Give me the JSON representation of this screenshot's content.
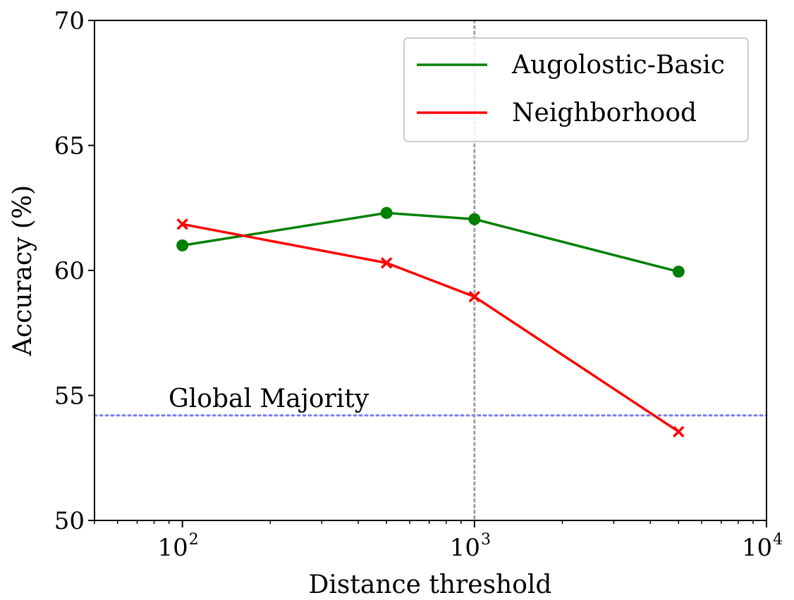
{
  "chart_data": {
    "type": "line",
    "xscale": "log",
    "xlim": [
      50,
      10000
    ],
    "ylim": [
      50,
      70
    ],
    "xlabel": "Distance threshold",
    "ylabel": "Accuracy (%)",
    "x_ticks": [
      {
        "value": 100,
        "base": "10",
        "exp": "2"
      },
      {
        "value": 1000,
        "base": "10",
        "exp": "3"
      },
      {
        "value": 10000,
        "base": "10",
        "exp": "4"
      }
    ],
    "y_ticks": [
      {
        "value": 50,
        "label": "50"
      },
      {
        "value": 55,
        "label": "55"
      },
      {
        "value": 60,
        "label": "60"
      },
      {
        "value": 65,
        "label": "65"
      },
      {
        "value": 70,
        "label": "70"
      }
    ],
    "series": [
      {
        "name": "Augolostic-Basic",
        "color": "#008000",
        "marker": "circle",
        "points": [
          {
            "x": 100,
            "y": 61.0
          },
          {
            "x": 500,
            "y": 62.3
          },
          {
            "x": 1000,
            "y": 62.05
          },
          {
            "x": 5000,
            "y": 59.95
          }
        ]
      },
      {
        "name": "Neighborhood",
        "color": "#ff0000",
        "marker": "x",
        "points": [
          {
            "x": 100,
            "y": 61.85
          },
          {
            "x": 500,
            "y": 60.3
          },
          {
            "x": 1000,
            "y": 58.95
          },
          {
            "x": 5000,
            "y": 53.55
          }
        ]
      }
    ],
    "reference_lines": [
      {
        "orientation": "horizontal",
        "value": 54.2,
        "color": "#7b7bf0",
        "style": "dotted",
        "label": "Global Majority"
      },
      {
        "orientation": "vertical",
        "value": 1000,
        "color": "#a0a0a0",
        "style": "dotted"
      }
    ],
    "legend": {
      "placement": "top-right"
    },
    "grid": false
  }
}
